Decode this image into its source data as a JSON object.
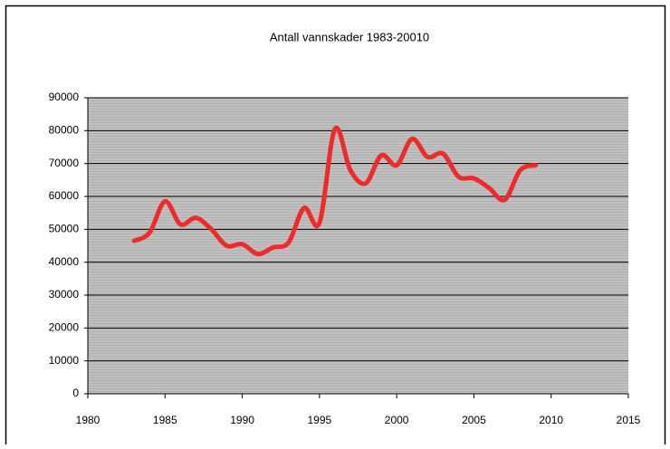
{
  "chart_data": {
    "type": "line",
    "title": "Antall vannskader 1983-20010",
    "x": [
      1983,
      1984,
      1985,
      1986,
      1987,
      1988,
      1989,
      1990,
      1991,
      1992,
      1993,
      1994,
      1995,
      1996,
      1997,
      1998,
      1999,
      2000,
      2001,
      2002,
      2003,
      2004,
      2005,
      2006,
      2007,
      2008,
      2009
    ],
    "series": [
      {
        "color": "#ee2b2b",
        "values": [
          46500,
          49000,
          58500,
          51500,
          53500,
          50000,
          45000,
          45500,
          42500,
          44500,
          46000,
          56500,
          52000,
          80500,
          68000,
          64000,
          72500,
          69500,
          77500,
          72000,
          73000,
          66000,
          65500,
          62500,
          59000,
          68000,
          69500
        ]
      }
    ],
    "xlim": [
      1980,
      2015
    ],
    "xticks": [
      1980,
      1985,
      1990,
      1995,
      2000,
      2005,
      2010,
      2015
    ],
    "ylim": [
      0,
      90000
    ],
    "yticks": [
      0,
      10000,
      20000,
      30000,
      40000,
      50000,
      60000,
      70000,
      80000,
      90000
    ],
    "grid": true,
    "smooth": true
  }
}
